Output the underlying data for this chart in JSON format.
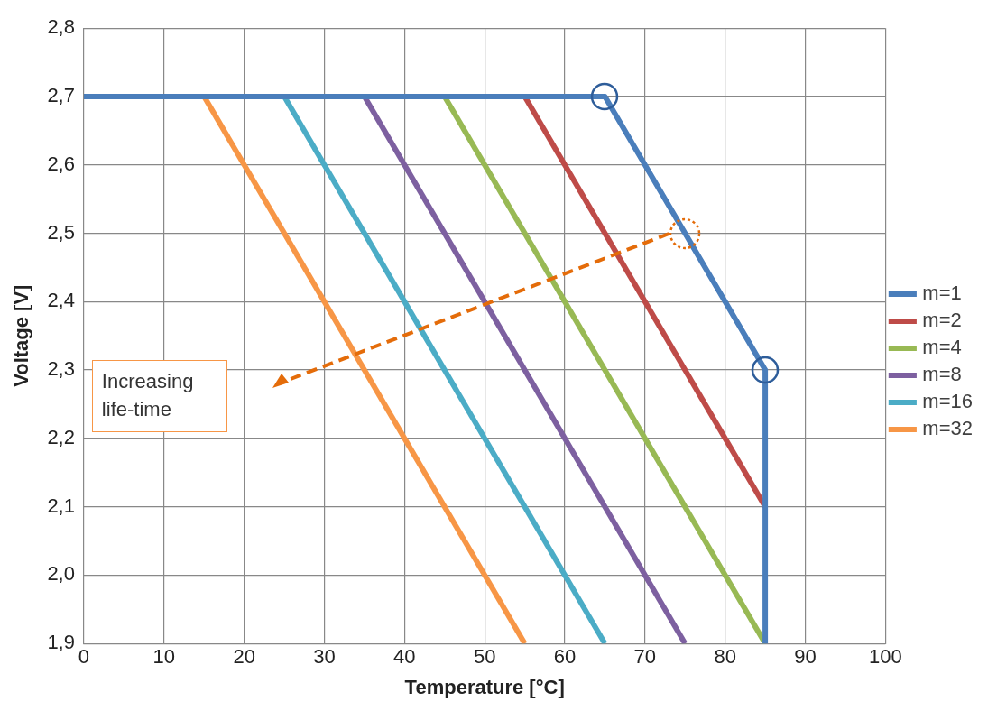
{
  "chart_data": {
    "type": "line",
    "xlabel": "Temperature [°C]",
    "ylabel": "Voltage [V]",
    "xlim": [
      0,
      100
    ],
    "xticks": [
      0,
      10,
      20,
      30,
      40,
      50,
      60,
      70,
      80,
      90,
      100
    ],
    "ylim": [
      1.9,
      2.8
    ],
    "yticks": [
      {
        "value": 1.9,
        "label": "1,9"
      },
      {
        "value": 2.0,
        "label": "2,0"
      },
      {
        "value": 2.1,
        "label": "2,1"
      },
      {
        "value": 2.2,
        "label": "2,2"
      },
      {
        "value": 2.3,
        "label": "2,3"
      },
      {
        "value": 2.4,
        "label": "2,4"
      },
      {
        "value": 2.5,
        "label": "2,5"
      },
      {
        "value": 2.6,
        "label": "2,6"
      },
      {
        "value": 2.7,
        "label": "2,7"
      },
      {
        "value": 2.8,
        "label": "2,8"
      }
    ],
    "grid": true,
    "legend": "right",
    "line_style": "solid",
    "annotations": [
      "Increasing life-time"
    ],
    "series": [
      {
        "name": "m=1",
        "color": "#4a7ebb",
        "x": [
          0,
          65,
          85,
          85
        ],
        "values": [
          2.7,
          2.7,
          2.3,
          1.9
        ]
      },
      {
        "name": "m=2",
        "color": "#be4b48",
        "x": [
          55,
          85
        ],
        "values": [
          2.7,
          2.1
        ]
      },
      {
        "name": "m=4",
        "color": "#98b954",
        "x": [
          45,
          85
        ],
        "values": [
          2.7,
          1.9
        ]
      },
      {
        "name": "m=8",
        "color": "#7d60a0",
        "x": [
          35,
          75
        ],
        "values": [
          2.7,
          1.9
        ]
      },
      {
        "name": "m=16",
        "color": "#4bacc6",
        "x": [
          25,
          65
        ],
        "values": [
          2.7,
          1.9
        ]
      },
      {
        "name": "m=32",
        "color": "#f79646",
        "x": [
          15,
          55
        ],
        "values": [
          2.7,
          1.9
        ]
      }
    ]
  }
}
